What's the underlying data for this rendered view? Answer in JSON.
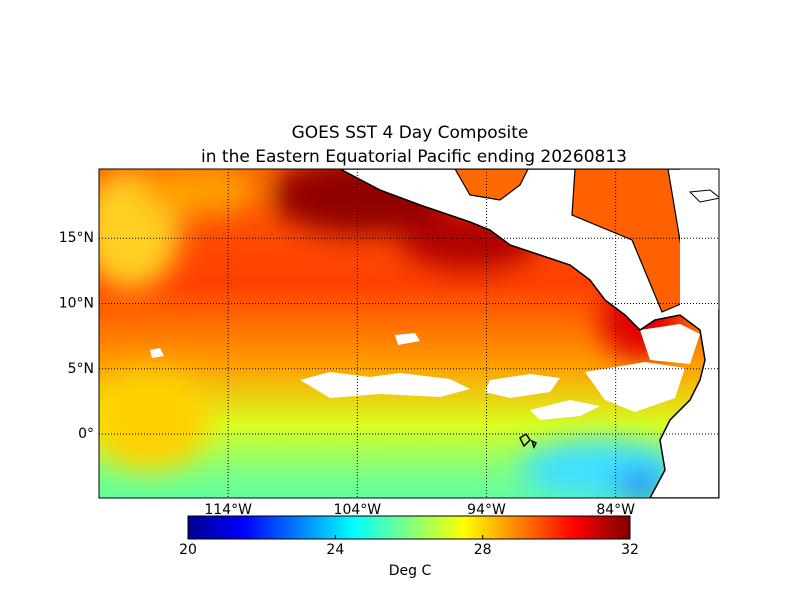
{
  "title": [
    "GOES SST 4 Day Composite",
    "in the Eastern Equatorial Pacific ending 20260813"
  ],
  "map": {
    "lon_range": [
      -124,
      -76
    ],
    "lat_range": [
      -4.9,
      20.3
    ],
    "lon_ticks": [
      {
        "value": -114,
        "label": "114°W"
      },
      {
        "value": -104,
        "label": "104°W"
      },
      {
        "value": -94,
        "label": "94°W"
      },
      {
        "value": -84,
        "label": "84°W"
      }
    ],
    "lat_ticks": [
      {
        "value": 15,
        "label": "15°N"
      },
      {
        "value": 10,
        "label": "10°N"
      },
      {
        "value": 5,
        "label": "5°N"
      },
      {
        "value": 0,
        "label": "0°"
      }
    ]
  },
  "colorbar": {
    "range": [
      20,
      32
    ],
    "ticks": [
      20,
      24,
      28,
      32
    ],
    "label": "Deg C"
  }
}
